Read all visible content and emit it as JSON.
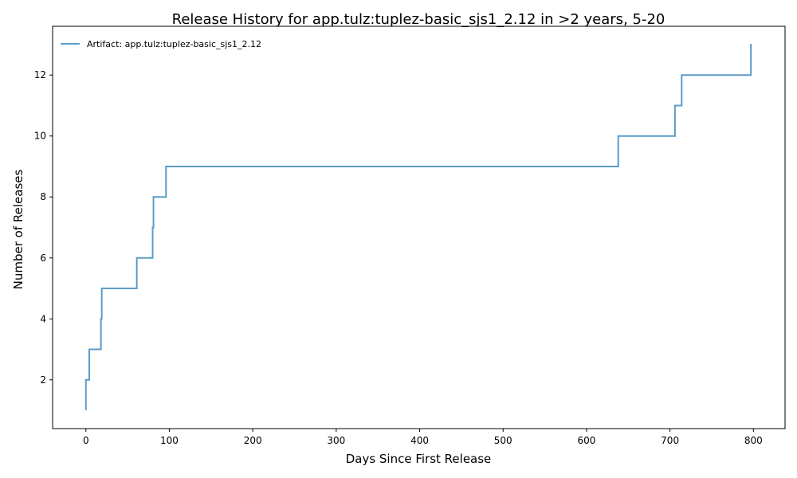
{
  "chart_data": {
    "type": "line",
    "step": "post",
    "title": "Release History for app.tulz:tuplez-basic_sjs1_2.12 in >2 years, 5-20",
    "xlabel": "Days Since First Release",
    "ylabel": "Number of Releases",
    "xlim": [
      -39.9,
      837.9
    ],
    "ylim": [
      0.4,
      13.6
    ],
    "xticks": [
      0,
      100,
      200,
      300,
      400,
      500,
      600,
      700,
      800
    ],
    "yticks": [
      2,
      4,
      6,
      8,
      10,
      12
    ],
    "grid": false,
    "legend_position": "top-left",
    "series": [
      {
        "name": "Artifact: app.tulz:tuplez-basic_sjs1_2.12",
        "color": "#5b9bc8",
        "x": [
          0,
          0,
          4,
          18,
          19,
          61,
          80,
          81,
          96,
          638,
          706,
          714,
          797,
          798
        ],
        "y": [
          1,
          2,
          3,
          4,
          5,
          6,
          7,
          8,
          9,
          10,
          11,
          12,
          13,
          13
        ]
      }
    ]
  }
}
